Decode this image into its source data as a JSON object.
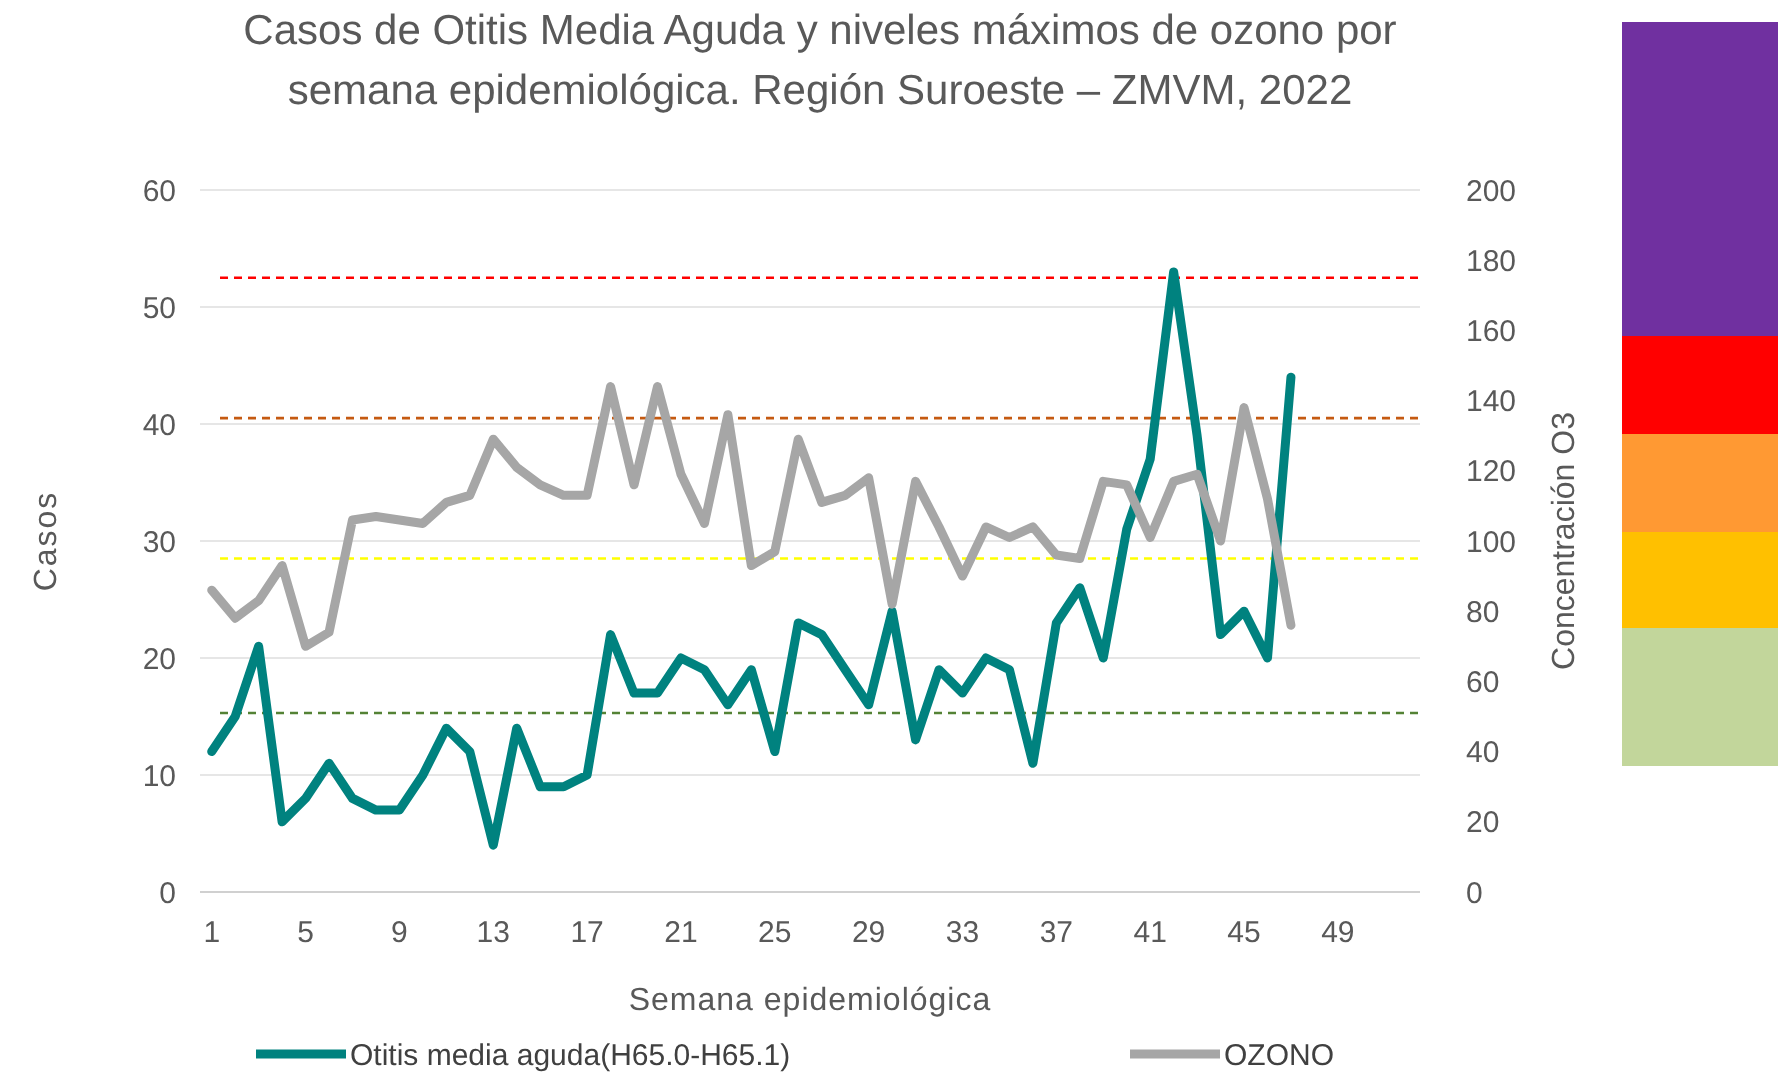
{
  "chart_data": {
    "type": "line",
    "title": "Casos de Otitis Media Aguda y niveles máximos de ozono por semana epidemiológica. Región Suroeste – ZMVM, 2022",
    "xlabel": "Semana epidemiológica",
    "ylabel": "Casos",
    "y2label": "Concentración O3",
    "x": [
      1,
      2,
      3,
      4,
      5,
      6,
      7,
      8,
      9,
      10,
      11,
      12,
      13,
      14,
      15,
      16,
      17,
      18,
      19,
      20,
      21,
      22,
      23,
      24,
      25,
      26,
      27,
      28,
      29,
      30,
      31,
      32,
      33,
      34,
      35,
      36,
      37,
      38,
      39,
      40,
      41,
      42,
      43,
      44,
      45,
      46,
      47
    ],
    "xlim": [
      0.5,
      52.5
    ],
    "xticks": [
      1,
      5,
      9,
      13,
      17,
      21,
      25,
      29,
      33,
      37,
      41,
      45,
      49
    ],
    "ylim": [
      0,
      60
    ],
    "yticks": [
      0,
      10,
      20,
      30,
      40,
      50,
      60
    ],
    "y2lim": [
      0,
      200
    ],
    "y2ticks": [
      0,
      20,
      40,
      60,
      80,
      100,
      120,
      140,
      160,
      180,
      200
    ],
    "series": [
      {
        "name": "Otitis media aguda(H65.0-H65.1)",
        "color": "#00827f",
        "values": [
          12,
          15,
          21,
          6,
          8,
          11,
          8,
          7,
          7,
          10,
          14,
          12,
          4,
          14,
          9,
          9,
          10,
          22,
          17,
          17,
          20,
          19,
          16,
          19,
          12,
          23,
          22,
          19,
          16,
          24,
          13,
          19,
          17,
          20,
          19,
          11,
          23,
          26,
          20,
          31,
          37,
          53,
          39,
          22,
          24,
          20,
          44
        ]
      },
      {
        "name": "OZONO",
        "color": "#a6a6a6",
        "axis": "y2",
        "values": [
          86,
          78,
          83,
          93,
          70,
          74,
          106,
          107,
          106,
          105,
          111,
          113,
          129,
          121,
          116,
          113,
          113,
          144,
          116,
          144,
          119,
          105,
          136,
          93,
          97,
          129,
          111,
          113,
          118,
          82,
          117,
          104,
          90,
          104,
          101,
          104,
          96,
          95,
          117,
          116,
          101,
          117,
          119,
          100,
          138,
          112,
          76
        ]
      }
    ],
    "ref_lines": [
      {
        "axis": "y2",
        "value": 175,
        "color": "#ff0000",
        "line_style": "dashed"
      },
      {
        "axis": "y2",
        "value": 135,
        "color": "#c55a11",
        "line_style": "dashed"
      },
      {
        "axis": "y2",
        "value": 95,
        "color": "#ffff00",
        "line_style": "dashed"
      },
      {
        "axis": "y2",
        "value": 51,
        "color": "#548235",
        "line_style": "dashed"
      }
    ],
    "grid": "y",
    "legend": "bottom",
    "marker": "none",
    "line_style": "solid"
  }
}
